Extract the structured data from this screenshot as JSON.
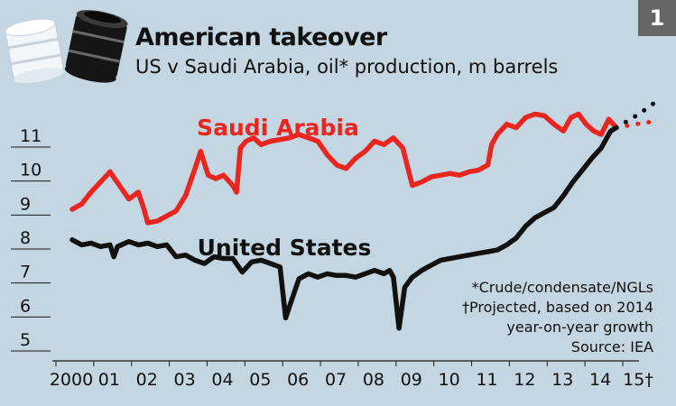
{
  "figure": {
    "badge": "1",
    "title": "American takeover",
    "subtitle": "US v Saudi Arabia, oil* production, m barrels",
    "footnotes": [
      "*Crude/condensate/NGLs",
      "†Projected, based on 2014",
      "year-on-year growth",
      "Source: IEA"
    ],
    "colors": {
      "background": "#c4d6e2",
      "saudi": "#e8261f",
      "us": "#111111",
      "grid": "#1a1a1a"
    },
    "icon": "oil-barrels-icon"
  },
  "chart_data": {
    "type": "line",
    "title": "American takeover",
    "subtitle": "US v Saudi Arabia, oil* production, m barrels",
    "xlabel": "",
    "ylabel": "",
    "x_tick_labels": [
      "2000",
      "01",
      "02",
      "03",
      "04",
      "05",
      "06",
      "07",
      "08",
      "09",
      "10",
      "11",
      "12",
      "13",
      "14",
      "15†"
    ],
    "y_tick_labels": [
      "5",
      "6",
      "7",
      "8",
      "9",
      "10",
      "11"
    ],
    "xlim": [
      2000,
      2016
    ],
    "ylim": [
      4.5,
      11.8
    ],
    "grid": "horizontal",
    "series": [
      {
        "name": "Saudi Arabia",
        "color": "#e8261f",
        "points": [
          [
            2000.0,
            8.8
          ],
          [
            2000.25,
            8.95
          ],
          [
            2000.5,
            9.3
          ],
          [
            2000.75,
            9.6
          ],
          [
            2001.0,
            9.9
          ],
          [
            2001.25,
            9.5
          ],
          [
            2001.5,
            9.1
          ],
          [
            2001.75,
            9.3
          ],
          [
            2001.9,
            8.8
          ],
          [
            2002.0,
            8.4
          ],
          [
            2002.25,
            8.45
          ],
          [
            2002.5,
            8.6
          ],
          [
            2002.75,
            8.75
          ],
          [
            2003.0,
            9.2
          ],
          [
            2003.25,
            10.0
          ],
          [
            2003.4,
            10.5
          ],
          [
            2003.6,
            9.8
          ],
          [
            2003.8,
            9.7
          ],
          [
            2004.0,
            9.8
          ],
          [
            2004.25,
            9.5
          ],
          [
            2004.35,
            9.3
          ],
          [
            2004.45,
            10.6
          ],
          [
            2004.6,
            10.8
          ],
          [
            2004.8,
            10.9
          ],
          [
            2005.0,
            10.7
          ],
          [
            2005.25,
            10.8
          ],
          [
            2005.5,
            10.85
          ],
          [
            2005.75,
            10.9
          ],
          [
            2006.0,
            11.0
          ],
          [
            2006.25,
            10.9
          ],
          [
            2006.5,
            10.8
          ],
          [
            2006.75,
            10.4
          ],
          [
            2007.0,
            10.1
          ],
          [
            2007.25,
            10.0
          ],
          [
            2007.5,
            10.3
          ],
          [
            2007.75,
            10.5
          ],
          [
            2008.0,
            10.8
          ],
          [
            2008.25,
            10.7
          ],
          [
            2008.5,
            10.9
          ],
          [
            2008.75,
            10.6
          ],
          [
            2009.0,
            9.5
          ],
          [
            2009.25,
            9.6
          ],
          [
            2009.5,
            9.75
          ],
          [
            2009.75,
            9.8
          ],
          [
            2010.0,
            9.85
          ],
          [
            2010.25,
            9.8
          ],
          [
            2010.5,
            9.9
          ],
          [
            2010.75,
            9.95
          ],
          [
            2011.0,
            10.1
          ],
          [
            2011.1,
            10.7
          ],
          [
            2011.25,
            11.0
          ],
          [
            2011.5,
            11.3
          ],
          [
            2011.75,
            11.2
          ],
          [
            2012.0,
            11.5
          ],
          [
            2012.25,
            11.6
          ],
          [
            2012.5,
            11.55
          ],
          [
            2012.75,
            11.3
          ],
          [
            2013.0,
            11.1
          ],
          [
            2013.2,
            11.5
          ],
          [
            2013.4,
            11.6
          ],
          [
            2013.6,
            11.3
          ],
          [
            2013.8,
            11.1
          ],
          [
            2014.0,
            11.0
          ],
          [
            2014.2,
            11.45
          ],
          [
            2014.4,
            11.2
          ]
        ],
        "projection": [
          [
            2014.4,
            11.2
          ],
          [
            2014.9,
            11.3
          ],
          [
            2015.5,
            11.4
          ]
        ]
      },
      {
        "name": "United States",
        "color": "#111111",
        "points": [
          [
            2000.0,
            7.9
          ],
          [
            2000.25,
            7.75
          ],
          [
            2000.5,
            7.8
          ],
          [
            2000.75,
            7.7
          ],
          [
            2001.0,
            7.75
          ],
          [
            2001.1,
            7.4
          ],
          [
            2001.2,
            7.7
          ],
          [
            2001.5,
            7.85
          ],
          [
            2001.75,
            7.75
          ],
          [
            2002.0,
            7.8
          ],
          [
            2002.25,
            7.7
          ],
          [
            2002.5,
            7.75
          ],
          [
            2002.75,
            7.4
          ],
          [
            2003.0,
            7.45
          ],
          [
            2003.25,
            7.3
          ],
          [
            2003.5,
            7.2
          ],
          [
            2003.75,
            7.4
          ],
          [
            2004.0,
            7.35
          ],
          [
            2004.25,
            7.35
          ],
          [
            2004.5,
            6.95
          ],
          [
            2004.75,
            7.25
          ],
          [
            2005.0,
            7.3
          ],
          [
            2005.25,
            7.2
          ],
          [
            2005.5,
            7.1
          ],
          [
            2005.65,
            5.6
          ],
          [
            2005.8,
            6.1
          ],
          [
            2006.0,
            6.75
          ],
          [
            2006.25,
            6.9
          ],
          [
            2006.5,
            6.8
          ],
          [
            2006.75,
            6.9
          ],
          [
            2007.0,
            6.85
          ],
          [
            2007.25,
            6.85
          ],
          [
            2007.5,
            6.8
          ],
          [
            2007.75,
            6.9
          ],
          [
            2008.0,
            7.0
          ],
          [
            2008.25,
            6.9
          ],
          [
            2008.4,
            7.0
          ],
          [
            2008.5,
            6.8
          ],
          [
            2008.65,
            5.3
          ],
          [
            2008.8,
            6.5
          ],
          [
            2009.0,
            6.8
          ],
          [
            2009.25,
            7.0
          ],
          [
            2009.5,
            7.15
          ],
          [
            2009.75,
            7.3
          ],
          [
            2010.0,
            7.35
          ],
          [
            2010.25,
            7.4
          ],
          [
            2010.5,
            7.45
          ],
          [
            2010.75,
            7.5
          ],
          [
            2011.0,
            7.55
          ],
          [
            2011.25,
            7.6
          ],
          [
            2011.5,
            7.75
          ],
          [
            2011.75,
            7.95
          ],
          [
            2012.0,
            8.3
          ],
          [
            2012.25,
            8.55
          ],
          [
            2012.5,
            8.7
          ],
          [
            2012.75,
            8.85
          ],
          [
            2013.0,
            9.2
          ],
          [
            2013.25,
            9.6
          ],
          [
            2013.5,
            9.95
          ],
          [
            2013.75,
            10.3
          ],
          [
            2014.0,
            10.6
          ],
          [
            2014.25,
            11.1
          ],
          [
            2014.4,
            11.2
          ]
        ],
        "projection": [
          [
            2014.4,
            11.2
          ],
          [
            2015.0,
            11.6
          ],
          [
            2015.5,
            12.0
          ]
        ]
      }
    ]
  }
}
